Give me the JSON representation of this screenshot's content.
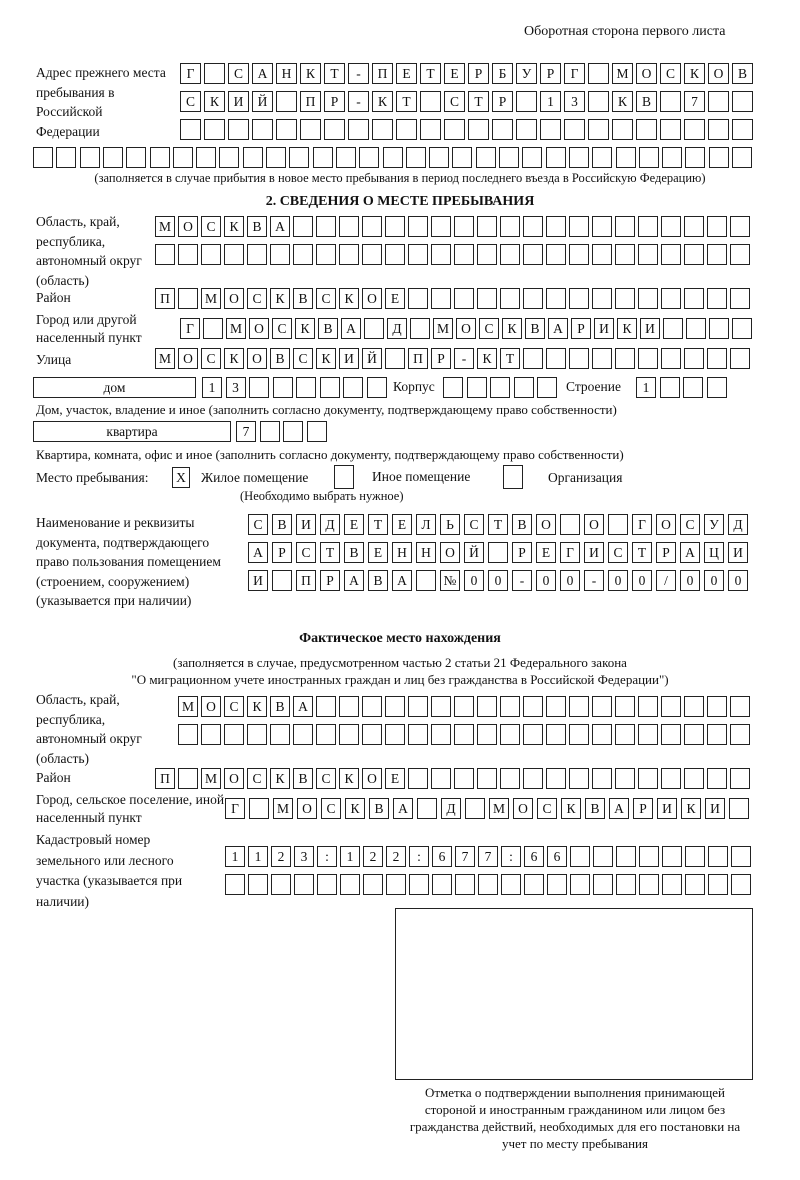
{
  "page_header": "Оборотная сторона первого листа",
  "previous_address": {
    "label": "Адрес прежнего места пребывания в Российской Федерации",
    "rows": [
      [
        "Г",
        "",
        "С",
        "А",
        "Н",
        "К",
        "Т",
        "-",
        "П",
        "Е",
        "Т",
        "Е",
        "Р",
        "Б",
        "У",
        "Р",
        "Г",
        "",
        "М",
        "О",
        "С",
        "К",
        "О",
        "В"
      ],
      [
        "С",
        "К",
        "И",
        "Й",
        "",
        "П",
        "Р",
        "-",
        "К",
        "Т",
        "",
        "С",
        "Т",
        "Р",
        "",
        "1",
        "3",
        "",
        "К",
        "В",
        "",
        "7",
        "",
        ""
      ],
      [
        "",
        "",
        "",
        "",
        "",
        "",
        "",
        "",
        "",
        "",
        "",
        "",
        "",
        "",
        "",
        "",
        "",
        "",
        "",
        "",
        "",
        "",
        "",
        ""
      ],
      [
        "",
        "",
        "",
        "",
        "",
        "",
        "",
        "",
        "",
        "",
        "",
        "",
        "",
        "",
        "",
        "",
        "",
        "",
        "",
        "",
        "",
        "",
        "",
        "",
        "",
        "",
        "",
        "",
        "",
        "",
        ""
      ]
    ],
    "note": "(заполняется в случае прибытия в новое место пребывания в период последнего въезда в Российскую Федерацию)"
  },
  "section2": {
    "title": "2. СВЕДЕНИЯ О МЕСТЕ ПРЕБЫВАНИЯ",
    "region": {
      "label": "Область, край, республика, автономный округ (область)",
      "rows": [
        [
          "М",
          "О",
          "С",
          "К",
          "В",
          "А",
          "",
          "",
          "",
          "",
          "",
          "",
          "",
          "",
          "",
          "",
          "",
          "",
          "",
          "",
          "",
          "",
          "",
          "",
          "",
          ""
        ],
        [
          "",
          "",
          "",
          "",
          "",
          "",
          "",
          "",
          "",
          "",
          "",
          "",
          "",
          "",
          "",
          "",
          "",
          "",
          "",
          "",
          "",
          "",
          "",
          "",
          "",
          ""
        ]
      ]
    },
    "district": {
      "label": "Район",
      "cells": [
        "П",
        "",
        "М",
        "О",
        "С",
        "К",
        "В",
        "С",
        "К",
        "О",
        "Е",
        "",
        "",
        "",
        "",
        "",
        "",
        "",
        "",
        "",
        "",
        "",
        "",
        "",
        "",
        ""
      ]
    },
    "city": {
      "label": "Город или другой населенный пункт",
      "cells": [
        "Г",
        "",
        "М",
        "О",
        "С",
        "К",
        "В",
        "А",
        "",
        "Д",
        "",
        "М",
        "О",
        "С",
        "К",
        "В",
        "А",
        "Р",
        "И",
        "К",
        "И",
        "",
        "",
        "",
        ""
      ]
    },
    "street": {
      "label": "Улица",
      "cells": [
        "М",
        "О",
        "С",
        "К",
        "О",
        "В",
        "С",
        "К",
        "И",
        "Й",
        "",
        "П",
        "Р",
        "-",
        "К",
        "Т",
        "",
        "",
        "",
        "",
        "",
        "",
        "",
        "",
        "",
        ""
      ]
    },
    "house": {
      "type": "дом",
      "cells": [
        "1",
        "3",
        "",
        "",
        "",
        "",
        "",
        ""
      ],
      "korpus_label": "Корпус",
      "korpus_cells": [
        "",
        "",
        "",
        "",
        ""
      ],
      "building_label": "Строение",
      "building_cells": [
        "1",
        "",
        "",
        ""
      ],
      "caption": "Дом, участок, владение и иное (заполнить согласно документу, подтверждающему право собственности)"
    },
    "apartment": {
      "type": "квартира",
      "cells": [
        "7",
        "",
        "",
        ""
      ],
      "caption": "Квартира, комната, офис и иное (заполнить согласно документу, подтверждающему право собственности)"
    },
    "place": {
      "label": "Место пребывания:",
      "options": [
        {
          "label": "Жилое помещение",
          "mark": "Х",
          "checked": true
        },
        {
          "label": "Иное помещение",
          "mark": "",
          "checked": false
        },
        {
          "label": "Организация",
          "mark": "",
          "checked": false
        }
      ],
      "note": "(Необходимо выбрать нужное)"
    },
    "document": {
      "label": "Наименование и реквизиты документа, подтверждающего право пользования помещением (строением, сооружением) (указывается при наличии)",
      "rows": [
        [
          "С",
          "В",
          "И",
          "Д",
          "Е",
          "Т",
          "Е",
          "Л",
          "Ь",
          "С",
          "Т",
          "В",
          "О",
          "",
          "О",
          "",
          "Г",
          "О",
          "С",
          "У",
          "Д"
        ],
        [
          "А",
          "Р",
          "С",
          "Т",
          "В",
          "Е",
          "Н",
          "Н",
          "О",
          "Й",
          "",
          "Р",
          "Е",
          "Г",
          "И",
          "С",
          "Т",
          "Р",
          "А",
          "Ц",
          "И"
        ],
        [
          "И",
          "",
          "П",
          "Р",
          "А",
          "В",
          "А",
          "",
          "№",
          "0",
          "0",
          "-",
          "0",
          "0",
          "-",
          "0",
          "0",
          "/",
          "0",
          "0",
          "0"
        ]
      ]
    }
  },
  "actual": {
    "title": "Фактическое место нахождения",
    "note_line1": "(заполняется в случае, предусмотренном частью 2 статьи 21 Федерального закона",
    "note_line2": "\"О миграционном учете иностранных граждан и лиц без гражданства в Российской Федерации\")",
    "region": {
      "label": "Область, край, республика, автономный округ (область)",
      "rows": [
        [
          "М",
          "О",
          "С",
          "К",
          "В",
          "А",
          "",
          "",
          "",
          "",
          "",
          "",
          "",
          "",
          "",
          "",
          "",
          "",
          "",
          "",
          "",
          "",
          "",
          "",
          ""
        ],
        [
          "",
          "",
          "",
          "",
          "",
          "",
          "",
          "",
          "",
          "",
          "",
          "",
          "",
          "",
          "",
          "",
          "",
          "",
          "",
          "",
          "",
          "",
          "",
          "",
          ""
        ]
      ]
    },
    "district": {
      "label": "Район",
      "cells": [
        "П",
        "",
        "М",
        "О",
        "С",
        "К",
        "В",
        "С",
        "К",
        "О",
        "Е",
        "",
        "",
        "",
        "",
        "",
        "",
        "",
        "",
        "",
        "",
        "",
        "",
        "",
        "",
        ""
      ]
    },
    "city": {
      "label": "Город, сельское поселение, иной населенный пункт",
      "cells": [
        "Г",
        "",
        "М",
        "О",
        "С",
        "К",
        "В",
        "А",
        "",
        "Д",
        "",
        "М",
        "О",
        "С",
        "К",
        "В",
        "А",
        "Р",
        "И",
        "К",
        "И",
        ""
      ]
    },
    "cadastre": {
      "label": "Кадастровый номер земельного или лесного участка (указывается при наличии)",
      "rows": [
        [
          "1",
          "1",
          "2",
          "3",
          ":",
          "1",
          "2",
          "2",
          ":",
          "6",
          "7",
          "7",
          ":",
          "6",
          "6",
          "",
          "",
          "",
          "",
          "",
          "",
          "",
          ""
        ],
        [
          "",
          "",
          "",
          "",
          "",
          "",
          "",
          "",
          "",
          "",
          "",
          "",
          "",
          "",
          "",
          "",
          "",
          "",
          "",
          "",
          "",
          "",
          ""
        ]
      ]
    }
  },
  "stamp_box": {
    "caption": "Отметка о подтверждении выполнения принимающей стороной и иностранным гражданином или лицом без гражданства действий, необходимых для его постановки на учет по месту пребывания"
  }
}
